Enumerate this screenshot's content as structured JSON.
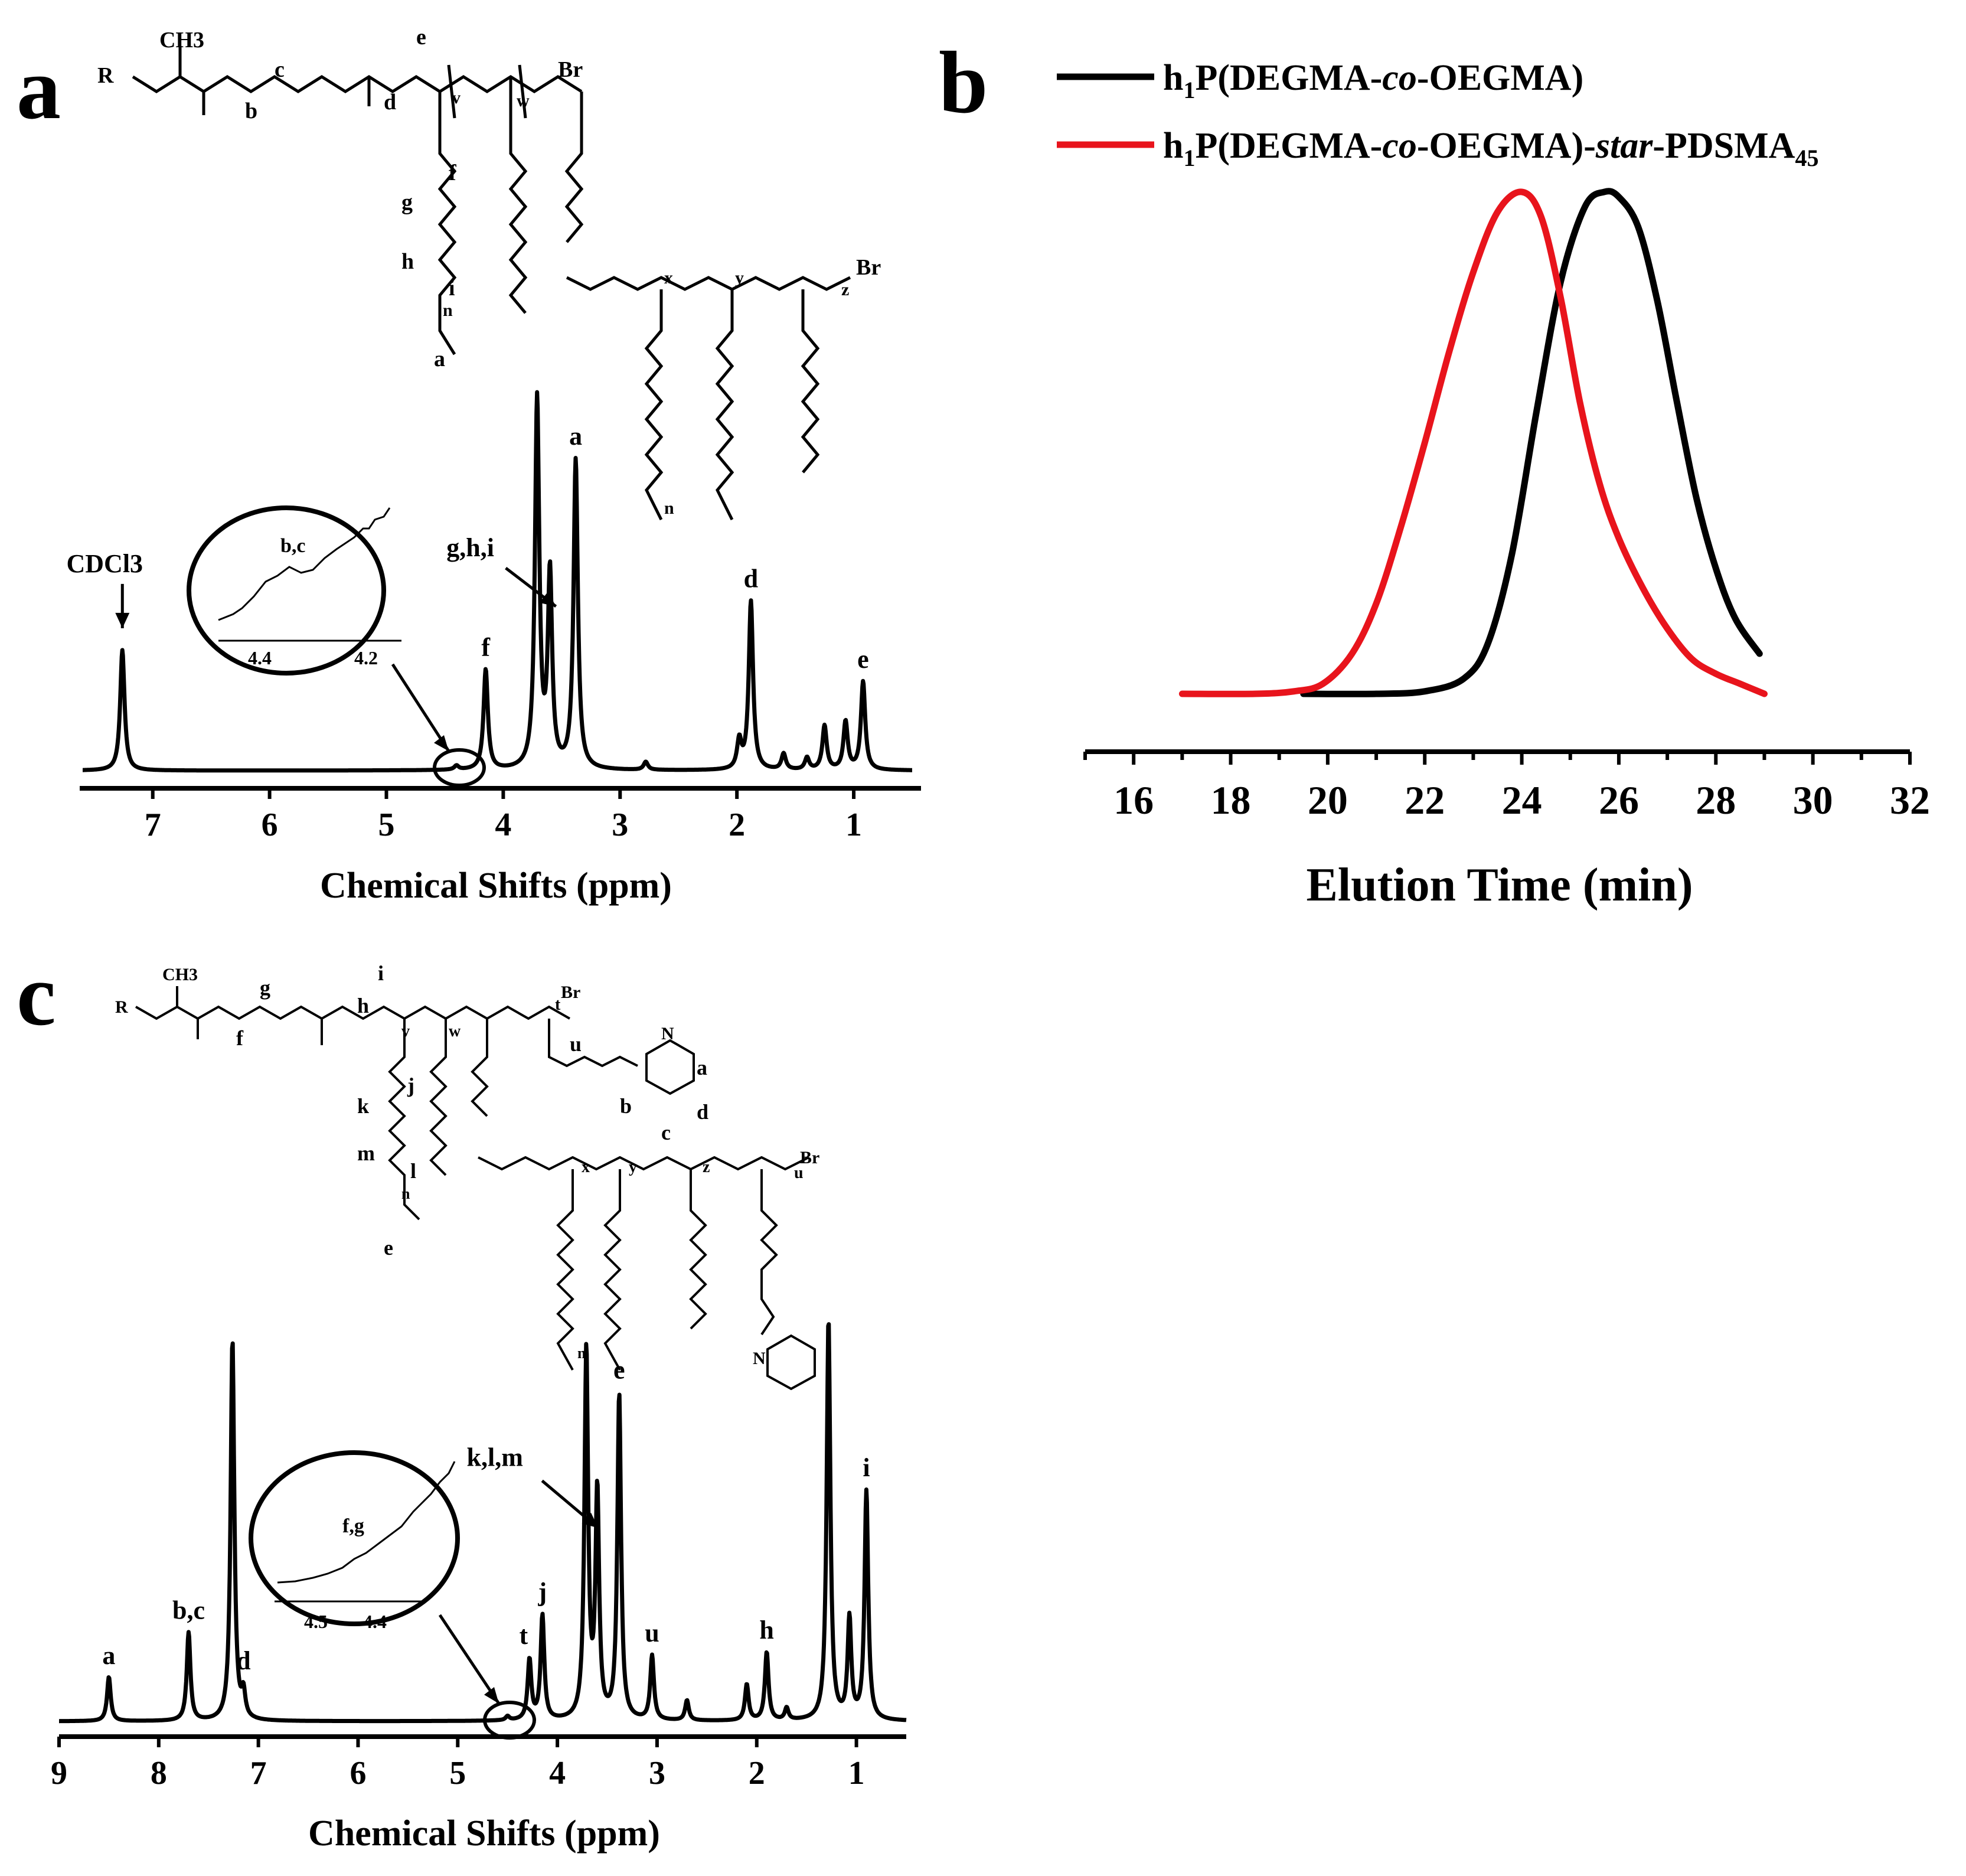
{
  "panels": {
    "a": {
      "letter": "a",
      "xlabel": "Chemical Shifts (ppm)",
      "x_ticks": [
        "7",
        "6",
        "5",
        "4",
        "3",
        "2",
        "1"
      ],
      "peak_labels": [
        {
          "text": "CDCl3",
          "ppm": 7.26
        },
        {
          "text": "f",
          "ppm": 4.15
        },
        {
          "text": "g,h,i",
          "ppm": 3.65
        },
        {
          "text": "a",
          "ppm": 3.38
        },
        {
          "text": "d",
          "ppm": 1.88
        },
        {
          "text": "e",
          "ppm": 0.92
        }
      ],
      "inset": {
        "label": "b,c",
        "ticks": [
          "4.4",
          "4.2"
        ]
      },
      "structure_labels": [
        "R",
        "CH3",
        "b",
        "c",
        "d",
        "e",
        "v",
        "w",
        "Br",
        "f",
        "g",
        "h",
        "i",
        "n",
        "a",
        "x",
        "y",
        "z",
        "Br",
        "n"
      ]
    },
    "b": {
      "letter": "b",
      "xlabel": "Elution Time (min)",
      "x_ticks": [
        "16",
        "18",
        "20",
        "22",
        "24",
        "26",
        "28",
        "30",
        "32"
      ],
      "legend": [
        {
          "label_parts": [
            "h",
            "1",
            "P(DEGMA-",
            "co",
            "-OEGMA)"
          ],
          "color": "#000000"
        },
        {
          "label_parts": [
            "h",
            "1",
            "P(DEGMA-",
            "co",
            "-OEGMA)-",
            "star",
            "-PDSMA",
            "45"
          ],
          "color": "#e8141c"
        }
      ]
    },
    "c": {
      "letter": "c",
      "xlabel": "Chemical Shifts (ppm)",
      "x_ticks": [
        "9",
        "8",
        "7",
        "6",
        "5",
        "4",
        "3",
        "2",
        "1"
      ],
      "peak_labels": [
        {
          "text": "a",
          "ppm": 8.5
        },
        {
          "text": "b,c",
          "ppm": 7.7
        },
        {
          "text": "d",
          "ppm": 7.15
        },
        {
          "text": "t",
          "ppm": 4.28
        },
        {
          "text": "j",
          "ppm": 4.15
        },
        {
          "text": "k,l,m",
          "ppm": 3.65
        },
        {
          "text": "e",
          "ppm": 3.38
        },
        {
          "text": "u",
          "ppm": 3.05
        },
        {
          "text": "h",
          "ppm": 1.9
        },
        {
          "text": "i",
          "ppm": 0.9
        }
      ],
      "inset": {
        "label": "f,g",
        "ticks": [
          "4.5",
          "4.4"
        ]
      },
      "structure_labels": [
        "R",
        "CH3",
        "g",
        "f",
        "h",
        "i",
        "v",
        "w",
        "t",
        "Br",
        "u",
        "N",
        "a",
        "b",
        "d",
        "c",
        "j",
        "k",
        "m",
        "l",
        "n",
        "e",
        "x",
        "y",
        "z",
        "u",
        "Br",
        "n",
        "N"
      ]
    }
  },
  "chart_data": [
    {
      "type": "line",
      "title": "",
      "xlabel": "Chemical Shifts (ppm)",
      "ylabel": "",
      "xlim": [
        7.6,
        0.5
      ],
      "x_reversed": true,
      "series": [
        {
          "values": [
            {
              "x": 7.26,
              "y": 0.3
            },
            {
              "x": 4.4,
              "y": 0.01
            },
            {
              "x": 4.15,
              "y": 0.25
            },
            {
              "x": 3.71,
              "y": 0.92
            },
            {
              "x": 3.6,
              "y": 0.48
            },
            {
              "x": 3.38,
              "y": 0.77
            },
            {
              "x": 2.78,
              "y": 0.02
            },
            {
              "x": 1.98,
              "y": 0.07
            },
            {
              "x": 1.88,
              "y": 0.42
            },
            {
              "x": 1.6,
              "y": 0.04
            },
            {
              "x": 1.4,
              "y": 0.03
            },
            {
              "x": 1.25,
              "y": 0.11
            },
            {
              "x": 1.07,
              "y": 0.12
            },
            {
              "x": 0.92,
              "y": 0.22
            }
          ]
        }
      ]
    },
    {
      "type": "line",
      "title": "",
      "xlabel": "Elution Time (min)",
      "ylabel": "",
      "xlim": [
        15,
        32
      ],
      "series": [
        {
          "name": "h1P(DEGMA-co-OEGMA)",
          "color": "#000000",
          "values": [
            {
              "x": 19.5,
              "y": 0.0
            },
            {
              "x": 21.0,
              "y": 0.0
            },
            {
              "x": 22.0,
              "y": 0.005
            },
            {
              "x": 22.8,
              "y": 0.03
            },
            {
              "x": 23.3,
              "y": 0.1
            },
            {
              "x": 23.8,
              "y": 0.28
            },
            {
              "x": 24.3,
              "y": 0.56
            },
            {
              "x": 24.8,
              "y": 0.82
            },
            {
              "x": 25.3,
              "y": 0.97
            },
            {
              "x": 25.7,
              "y": 1.0
            },
            {
              "x": 26.0,
              "y": 0.99
            },
            {
              "x": 26.4,
              "y": 0.93
            },
            {
              "x": 26.8,
              "y": 0.78
            },
            {
              "x": 27.2,
              "y": 0.58
            },
            {
              "x": 27.6,
              "y": 0.39
            },
            {
              "x": 28.0,
              "y": 0.25
            },
            {
              "x": 28.4,
              "y": 0.15
            },
            {
              "x": 28.9,
              "y": 0.08
            }
          ]
        },
        {
          "name": "h1P(DEGMA-co-OEGMA)-star-PDSMA45",
          "color": "#e8141c",
          "values": [
            {
              "x": 17.0,
              "y": 0.0
            },
            {
              "x": 18.5,
              "y": 0.0
            },
            {
              "x": 19.3,
              "y": 0.005
            },
            {
              "x": 19.9,
              "y": 0.02
            },
            {
              "x": 20.5,
              "y": 0.08
            },
            {
              "x": 21.0,
              "y": 0.18
            },
            {
              "x": 21.5,
              "y": 0.33
            },
            {
              "x": 22.0,
              "y": 0.5
            },
            {
              "x": 22.5,
              "y": 0.68
            },
            {
              "x": 23.0,
              "y": 0.84
            },
            {
              "x": 23.5,
              "y": 0.96
            },
            {
              "x": 24.0,
              "y": 1.0
            },
            {
              "x": 24.4,
              "y": 0.95
            },
            {
              "x": 24.8,
              "y": 0.79
            },
            {
              "x": 25.2,
              "y": 0.58
            },
            {
              "x": 25.6,
              "y": 0.42
            },
            {
              "x": 26.0,
              "y": 0.31
            },
            {
              "x": 26.5,
              "y": 0.21
            },
            {
              "x": 27.0,
              "y": 0.13
            },
            {
              "x": 27.5,
              "y": 0.07
            },
            {
              "x": 28.0,
              "y": 0.04
            },
            {
              "x": 28.5,
              "y": 0.02
            },
            {
              "x": 29.0,
              "y": 0.0
            }
          ]
        }
      ]
    },
    {
      "type": "line",
      "title": "",
      "xlabel": "Chemical Shifts (ppm)",
      "ylabel": "",
      "xlim": [
        9.0,
        0.5
      ],
      "x_reversed": true,
      "series": [
        {
          "values": [
            {
              "x": 8.5,
              "y": 0.11
            },
            {
              "x": 7.7,
              "y": 0.22
            },
            {
              "x": 7.26,
              "y": 0.95
            },
            {
              "x": 7.15,
              "y": 0.06
            },
            {
              "x": 4.5,
              "y": 0.01
            },
            {
              "x": 4.28,
              "y": 0.15
            },
            {
              "x": 4.15,
              "y": 0.26
            },
            {
              "x": 3.71,
              "y": 0.92
            },
            {
              "x": 3.6,
              "y": 0.56
            },
            {
              "x": 3.38,
              "y": 0.81
            },
            {
              "x": 3.05,
              "y": 0.16
            },
            {
              "x": 2.7,
              "y": 0.05
            },
            {
              "x": 2.1,
              "y": 0.09
            },
            {
              "x": 1.9,
              "y": 0.17
            },
            {
              "x": 1.7,
              "y": 0.03
            },
            {
              "x": 1.28,
              "y": 1.0
            },
            {
              "x": 1.07,
              "y": 0.25
            },
            {
              "x": 0.9,
              "y": 0.57
            }
          ]
        }
      ]
    }
  ]
}
